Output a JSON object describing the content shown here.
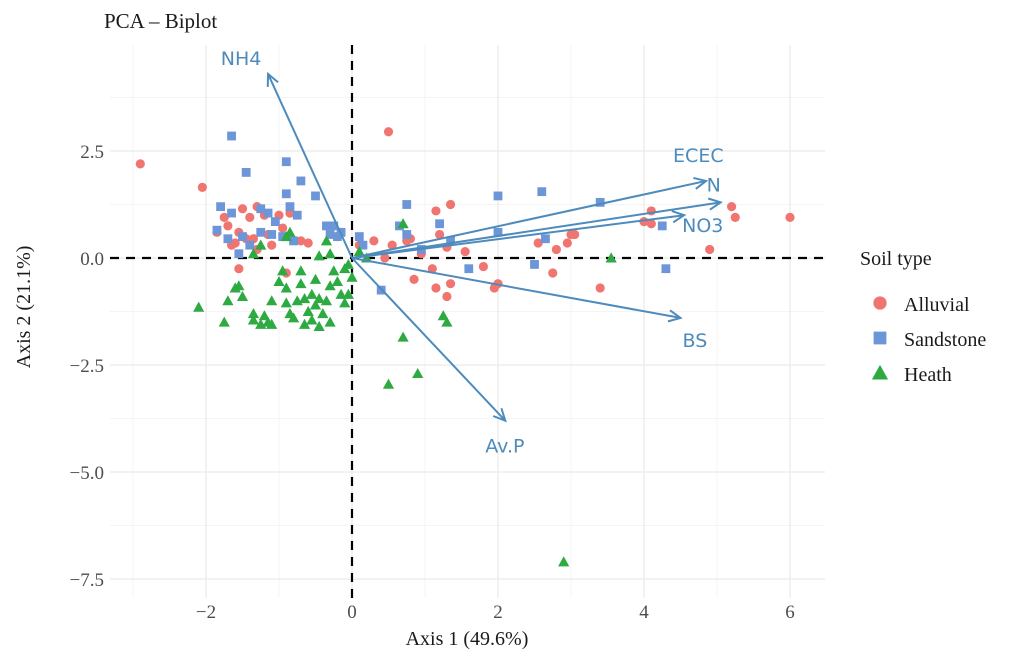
{
  "chart_data": {
    "type": "scatter",
    "title": "PCA – Biplot",
    "xlabel": "Axis 1 (49.6%)",
    "ylabel": "Axis 2 (21.1%)",
    "xlim": [
      -3.3,
      6.5
    ],
    "ylim": [
      -7.7,
      5.0
    ],
    "x_ticks": [
      -2,
      0,
      2,
      4,
      6
    ],
    "x_tick_labels": [
      "−2",
      "0",
      "2",
      "4",
      "6"
    ],
    "y_ticks": [
      -7.5,
      -5.0,
      -2.5,
      0.0,
      2.5
    ],
    "y_tick_labels": [
      "−7.5",
      "−5.0",
      "−2.5",
      "0.0",
      "2.5"
    ],
    "grid": true,
    "reference_lines": {
      "x": 0,
      "y": 0,
      "style": "dashed"
    },
    "legend": {
      "title": "Soil type",
      "position": "right",
      "entries": [
        {
          "label": "Alluvial",
          "color": "#f07570",
          "shape": "circle"
        },
        {
          "label": "Sandstone",
          "color": "#6c96d8",
          "shape": "square"
        },
        {
          "label": "Heath",
          "color": "#2eaa43",
          "shape": "triangle"
        }
      ]
    },
    "loading_color": "#4d8bbd",
    "loadings": [
      {
        "label": "NH4",
        "x": -1.15,
        "y": 4.3
      },
      {
        "label": "ECEC",
        "x": 4.85,
        "y": 1.8
      },
      {
        "label": "N",
        "x": 5.05,
        "y": 1.3
      },
      {
        "label": "NO3",
        "x": 4.55,
        "y": 1.0
      },
      {
        "label": "BS",
        "x": 4.5,
        "y": -1.4
      },
      {
        "label": "Av.P",
        "x": 2.1,
        "y": -3.8
      }
    ],
    "series": [
      {
        "name": "Alluvial",
        "color": "#f07570",
        "shape": "circle",
        "points": [
          [
            -2.9,
            2.2
          ],
          [
            -2.05,
            1.65
          ],
          [
            -1.75,
            0.95
          ],
          [
            -1.85,
            0.6
          ],
          [
            -1.7,
            0.75
          ],
          [
            -1.5,
            1.15
          ],
          [
            -1.4,
            0.95
          ],
          [
            -1.55,
            0.6
          ],
          [
            -1.6,
            0.35
          ],
          [
            -1.45,
            0.45
          ],
          [
            -1.3,
            0.2
          ],
          [
            -1.2,
            1.0
          ],
          [
            -1.15,
            0.55
          ],
          [
            -1.55,
            -0.25
          ],
          [
            -1.65,
            0.3
          ],
          [
            -1.0,
            1.0
          ],
          [
            -0.95,
            0.7
          ],
          [
            -0.85,
            1.05
          ],
          [
            -0.9,
            -0.35
          ],
          [
            -0.7,
            0.4
          ],
          [
            -1.3,
            1.2
          ],
          [
            -1.1,
            0.3
          ],
          [
            -0.2,
            0.5
          ],
          [
            0.5,
            2.95
          ],
          [
            0.3,
            0.4
          ],
          [
            0.55,
            0.3
          ],
          [
            0.75,
            0.4
          ],
          [
            0.8,
            0.45
          ],
          [
            0.45,
            0.0
          ],
          [
            0.95,
            0.1
          ],
          [
            1.15,
            1.1
          ],
          [
            1.35,
            1.25
          ],
          [
            1.2,
            0.55
          ],
          [
            1.3,
            0.25
          ],
          [
            1.1,
            -0.25
          ],
          [
            0.85,
            -0.5
          ],
          [
            1.15,
            -0.7
          ],
          [
            1.35,
            -0.6
          ],
          [
            1.3,
            -0.9
          ],
          [
            1.55,
            0.15
          ],
          [
            1.8,
            -0.2
          ],
          [
            1.95,
            -0.7
          ],
          [
            2.0,
            -0.6
          ],
          [
            2.55,
            0.35
          ],
          [
            2.8,
            0.2
          ],
          [
            2.75,
            -0.35
          ],
          [
            2.95,
            0.35
          ],
          [
            3.05,
            0.55
          ],
          [
            3.0,
            0.55
          ],
          [
            3.4,
            -0.7
          ],
          [
            4.0,
            0.85
          ],
          [
            4.1,
            0.8
          ],
          [
            4.1,
            1.1
          ],
          [
            4.9,
            0.2
          ],
          [
            5.2,
            1.2
          ],
          [
            5.25,
            0.95
          ],
          [
            6.0,
            0.95
          ],
          [
            -1.35,
            0.45
          ],
          [
            -0.6,
            0.35
          ],
          [
            0.1,
            0.3
          ]
        ]
      },
      {
        "name": "Sandstone",
        "color": "#6c96d8",
        "shape": "square",
        "points": [
          [
            -1.65,
            2.85
          ],
          [
            -1.45,
            2.0
          ],
          [
            -0.9,
            2.25
          ],
          [
            -1.8,
            1.2
          ],
          [
            -1.65,
            1.05
          ],
          [
            -1.25,
            1.15
          ],
          [
            -1.15,
            1.05
          ],
          [
            -0.9,
            1.5
          ],
          [
            -0.7,
            1.8
          ],
          [
            -0.85,
            1.2
          ],
          [
            -0.75,
            1.0
          ],
          [
            -1.85,
            0.65
          ],
          [
            -1.7,
            0.45
          ],
          [
            -1.5,
            0.5
          ],
          [
            -1.25,
            0.6
          ],
          [
            -1.1,
            0.55
          ],
          [
            -1.55,
            0.1
          ],
          [
            -1.4,
            0.3
          ],
          [
            -0.95,
            0.5
          ],
          [
            -0.8,
            0.4
          ],
          [
            -0.35,
            0.75
          ],
          [
            -0.25,
            0.75
          ],
          [
            -0.3,
            0.55
          ],
          [
            -0.15,
            0.6
          ],
          [
            -0.2,
            0.5
          ],
          [
            0.1,
            0.5
          ],
          [
            0.15,
            0.3
          ],
          [
            0.4,
            -0.75
          ],
          [
            0.65,
            0.75
          ],
          [
            0.75,
            1.25
          ],
          [
            0.75,
            0.55
          ],
          [
            0.95,
            0.2
          ],
          [
            1.2,
            0.8
          ],
          [
            1.35,
            0.4
          ],
          [
            1.6,
            -0.25
          ],
          [
            2.0,
            1.45
          ],
          [
            2.0,
            0.6
          ],
          [
            2.5,
            -0.15
          ],
          [
            2.6,
            1.55
          ],
          [
            2.65,
            0.45
          ],
          [
            3.4,
            1.3
          ],
          [
            4.25,
            0.75
          ],
          [
            4.3,
            -0.25
          ],
          [
            -0.5,
            1.45
          ],
          [
            -1.05,
            0.85
          ]
        ]
      },
      {
        "name": "Heath",
        "color": "#2eaa43",
        "shape": "triangle",
        "points": [
          [
            -2.1,
            -1.15
          ],
          [
            -1.75,
            -1.5
          ],
          [
            -1.7,
            -1.0
          ],
          [
            -1.55,
            -0.65
          ],
          [
            -1.6,
            -0.7
          ],
          [
            -1.5,
            -0.9
          ],
          [
            -1.35,
            -1.3
          ],
          [
            -1.35,
            -1.45
          ],
          [
            -1.25,
            -1.55
          ],
          [
            -1.15,
            -1.5
          ],
          [
            -1.1,
            -1.55
          ],
          [
            -1.2,
            -1.35
          ],
          [
            -1.1,
            -1.0
          ],
          [
            -1.0,
            -0.55
          ],
          [
            -0.95,
            -0.3
          ],
          [
            -0.9,
            -0.7
          ],
          [
            -0.9,
            -1.05
          ],
          [
            -0.85,
            -1.3
          ],
          [
            -0.8,
            -1.4
          ],
          [
            -0.75,
            -1.0
          ],
          [
            -0.7,
            -0.6
          ],
          [
            -0.7,
            -0.3
          ],
          [
            -0.65,
            -1.55
          ],
          [
            -0.6,
            -1.25
          ],
          [
            -0.55,
            -0.85
          ],
          [
            -0.55,
            -1.45
          ],
          [
            -0.5,
            -1.1
          ],
          [
            -0.5,
            -0.5
          ],
          [
            -0.45,
            -0.95
          ],
          [
            -0.4,
            -1.3
          ],
          [
            -0.35,
            -1.0
          ],
          [
            -0.3,
            -0.65
          ],
          [
            -0.3,
            -1.5
          ],
          [
            -0.25,
            -0.3
          ],
          [
            -0.2,
            -0.55
          ],
          [
            -0.15,
            -0.85
          ],
          [
            -0.1,
            -1.05
          ],
          [
            -0.1,
            -0.25
          ],
          [
            -0.05,
            -0.85
          ],
          [
            0.0,
            -0.45
          ],
          [
            -0.35,
            0.4
          ],
          [
            -0.3,
            0.1
          ],
          [
            -0.45,
            0.05
          ],
          [
            -0.05,
            -0.15
          ],
          [
            0.1,
            0.15
          ],
          [
            0.2,
            0.0
          ],
          [
            -0.9,
            0.5
          ],
          [
            -0.85,
            0.6
          ],
          [
            -1.35,
            0.1
          ],
          [
            -1.25,
            0.3
          ],
          [
            0.7,
            0.8
          ],
          [
            1.25,
            -1.35
          ],
          [
            1.3,
            -1.5
          ],
          [
            0.7,
            -1.85
          ],
          [
            0.5,
            -2.95
          ],
          [
            0.9,
            -2.7
          ],
          [
            3.55,
            0.0
          ],
          [
            2.9,
            -7.1
          ],
          [
            -0.65,
            -0.95
          ],
          [
            -0.45,
            -1.6
          ]
        ]
      }
    ]
  }
}
